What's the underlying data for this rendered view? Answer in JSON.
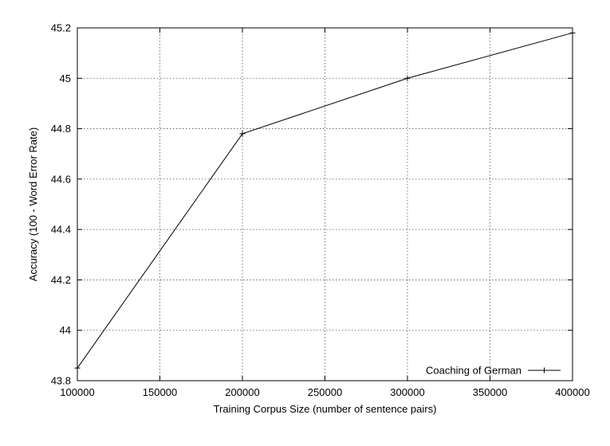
{
  "chart_data": {
    "type": "line",
    "xlabel": "Training Corpus Size (number of sentence pairs)",
    "ylabel": "Accuracy (100 - Word Error Rate)",
    "xlim": [
      100000,
      400000
    ],
    "ylim": [
      43.8,
      45.2
    ],
    "x_ticks": [
      100000,
      150000,
      200000,
      250000,
      300000,
      350000,
      400000
    ],
    "y_ticks": [
      43.8,
      44,
      44.2,
      44.4,
      44.6,
      44.8,
      45,
      45.2
    ],
    "x_tick_labels": [
      "100000",
      "150000",
      "200000",
      "250000",
      "300000",
      "350000",
      "400000"
    ],
    "y_tick_labels": [
      "43.8",
      "44",
      "44.2",
      "44.4",
      "44.6",
      "44.8",
      "45",
      "45.2"
    ],
    "grid": true,
    "legend_position": "bottom-right",
    "series": [
      {
        "name": "Coaching of German",
        "color": "#000000",
        "marker": "plus",
        "x": [
          100000,
          200000,
          300000,
          400000
        ],
        "y": [
          43.85,
          44.78,
          45.0,
          45.18
        ]
      }
    ]
  }
}
